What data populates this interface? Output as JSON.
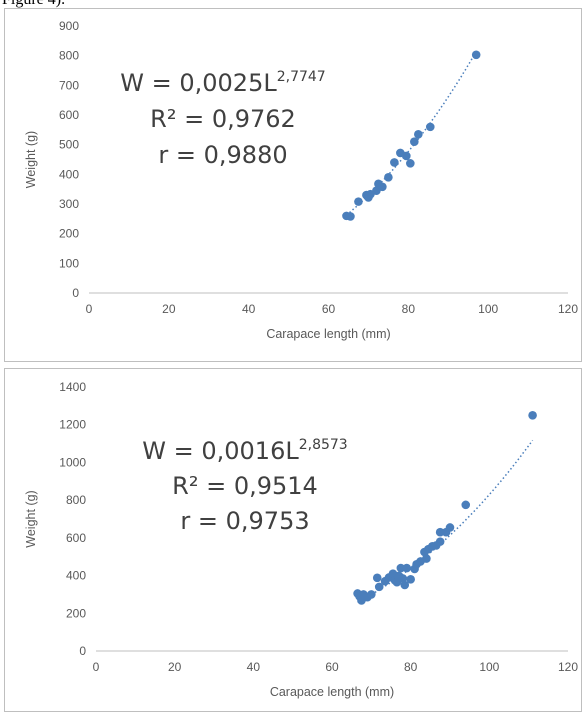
{
  "caption": "Figure 4).",
  "chart_data": [
    {
      "type": "scatter",
      "xlabel": "Carapace length (mm)",
      "ylabel": "Weight (g)",
      "xlim": [
        0,
        120
      ],
      "ylim": [
        0,
        900
      ],
      "xticks": [
        "0",
        "20",
        "40",
        "60",
        "80",
        "100",
        "120"
      ],
      "yticks": [
        "0",
        "100",
        "200",
        "300",
        "400",
        "500",
        "600",
        "700",
        "800",
        "900"
      ],
      "grid": false,
      "marker_color": "#4a7ebb",
      "trendline": {
        "style": "dotted power",
        "a": 0.0025,
        "b": 2.7747,
        "x_range": [
          64.5,
          97
        ]
      },
      "annotations": {
        "eq_base": "W = 0,0025L",
        "eq_exp": "2,7747",
        "r2": "R² = 0,9762",
        "r": "r = 0,9880"
      },
      "points": [
        {
          "x": 64.5,
          "y": 260
        },
        {
          "x": 65.5,
          "y": 258
        },
        {
          "x": 67.5,
          "y": 308
        },
        {
          "x": 69.5,
          "y": 330
        },
        {
          "x": 70,
          "y": 322
        },
        {
          "x": 70.5,
          "y": 333
        },
        {
          "x": 72,
          "y": 345
        },
        {
          "x": 72.5,
          "y": 368
        },
        {
          "x": 73.5,
          "y": 358
        },
        {
          "x": 75,
          "y": 390
        },
        {
          "x": 76.5,
          "y": 440
        },
        {
          "x": 78,
          "y": 472
        },
        {
          "x": 79.5,
          "y": 462
        },
        {
          "x": 80.5,
          "y": 437
        },
        {
          "x": 81.5,
          "y": 510
        },
        {
          "x": 82.5,
          "y": 535
        },
        {
          "x": 85.5,
          "y": 560
        },
        {
          "x": 97,
          "y": 803
        }
      ]
    },
    {
      "type": "scatter",
      "xlabel": "Carapace length (mm)",
      "ylabel": "Weight (g)",
      "xlim": [
        0,
        120
      ],
      "ylim": [
        0,
        1400
      ],
      "xticks": [
        "0",
        "20",
        "40",
        "60",
        "80",
        "100",
        "120"
      ],
      "yticks": [
        "0",
        "200",
        "400",
        "600",
        "800",
        "1000",
        "1200",
        "1400"
      ],
      "grid": false,
      "marker_color": "#4a7ebb",
      "trendline": {
        "style": "dotted power",
        "a": 0.0016,
        "b": 2.8573,
        "x_range": [
          66.5,
          111
        ]
      },
      "annotations": {
        "eq_base": "W = 0,0016L",
        "eq_exp": "2,8573",
        "r2": "R² = 0,9514",
        "r": "r = 0,9753"
      },
      "points": [
        {
          "x": 66.5,
          "y": 305
        },
        {
          "x": 67,
          "y": 290
        },
        {
          "x": 67.5,
          "y": 268
        },
        {
          "x": 68,
          "y": 300
        },
        {
          "x": 69,
          "y": 285
        },
        {
          "x": 70,
          "y": 300
        },
        {
          "x": 71.5,
          "y": 388
        },
        {
          "x": 72,
          "y": 340
        },
        {
          "x": 73.5,
          "y": 370
        },
        {
          "x": 74.5,
          "y": 390
        },
        {
          "x": 75.5,
          "y": 410
        },
        {
          "x": 76,
          "y": 375
        },
        {
          "x": 76.5,
          "y": 365
        },
        {
          "x": 77,
          "y": 398
        },
        {
          "x": 77.5,
          "y": 440
        },
        {
          "x": 78,
          "y": 385
        },
        {
          "x": 78.5,
          "y": 350
        },
        {
          "x": 79,
          "y": 440
        },
        {
          "x": 80,
          "y": 380
        },
        {
          "x": 81,
          "y": 435
        },
        {
          "x": 81.5,
          "y": 460
        },
        {
          "x": 82.5,
          "y": 475
        },
        {
          "x": 83.5,
          "y": 525
        },
        {
          "x": 84,
          "y": 490
        },
        {
          "x": 84.5,
          "y": 540
        },
        {
          "x": 85.5,
          "y": 555
        },
        {
          "x": 86.5,
          "y": 560
        },
        {
          "x": 87.5,
          "y": 580
        },
        {
          "x": 87.5,
          "y": 630
        },
        {
          "x": 89,
          "y": 630
        },
        {
          "x": 90,
          "y": 655
        },
        {
          "x": 94,
          "y": 775
        },
        {
          "x": 111,
          "y": 1250
        }
      ]
    }
  ]
}
